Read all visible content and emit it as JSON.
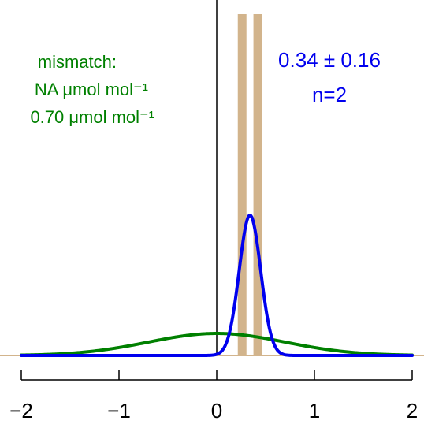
{
  "chart_data": {
    "type": "line",
    "title": "",
    "xlabel": "",
    "ylabel": "",
    "xlim": [
      -2,
      2
    ],
    "x_ticks": [
      "−2",
      "−1",
      "0",
      "1",
      "2"
    ],
    "x_tick_values": [
      -2,
      -1,
      0,
      1,
      2
    ],
    "vertical_reference_x": 0,
    "baseline_color": "#d2b48c",
    "measurements": {
      "color": "#d2b48c",
      "values": [
        0.26,
        0.42
      ]
    },
    "series": [
      {
        "name": "",
        "color": "#008000",
        "mean": 0.0,
        "sd": 0.7
      },
      {
        "name": "",
        "color": "#0000ee",
        "mean": 0.34,
        "sd": 0.11
      }
    ],
    "annotations": {
      "green": [
        "mismatch:",
        "NA μmol mol⁻¹",
        "0.70 μmol mol⁻¹"
      ],
      "blue": [
        "0.34 ± 0.16",
        "n=2"
      ]
    },
    "grid": false
  }
}
